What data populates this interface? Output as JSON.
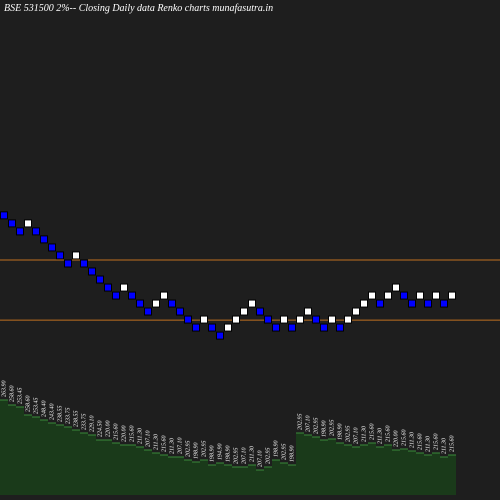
{
  "chart_data": {
    "type": "renko",
    "title": "BSE 531500  2%-- Closing Daily data Renko  charts munafasutra.in",
    "values": [
      263.9,
      258.6,
      253.45,
      258.6,
      253.45,
      248.4,
      243.4,
      238.55,
      233.75,
      238.55,
      233.75,
      229.1,
      224.5,
      220.0,
      215.6,
      220.0,
      215.6,
      211.3,
      207.1,
      211.3,
      215.6,
      211.3,
      207.1,
      202.95,
      198.9,
      202.95,
      198.9,
      194.9,
      198.9,
      202.95,
      207.1,
      211.3,
      207.1,
      202.95,
      198.9,
      202.95,
      198.9,
      202.95,
      207.1,
      202.95,
      198.9,
      202.95,
      198.9,
      202.95,
      207.1,
      211.3,
      215.6,
      211.3,
      215.6,
      220.0,
      215.6,
      211.3,
      215.6,
      211.3,
      215.6,
      211.3,
      215.6
    ],
    "value_labels": [
      "263.90",
      "258.60",
      "253.45",
      "258.60",
      "253.45",
      "248.40",
      "243.40",
      "238.55",
      "233.75",
      "238.55",
      "233.75",
      "229.10",
      "224.50",
      "220.00",
      "215.60",
      "220.00",
      "215.60",
      "211.30",
      "207.10",
      "211.30",
      "215.60",
      "211.30",
      "207.10",
      "202.95",
      "198.90",
      "202.95",
      "198.90",
      "194.90",
      "198.90",
      "202.95",
      "207.10",
      "211.30",
      "207.10",
      "202.95",
      "198.90",
      "202.95",
      "198.90",
      "202.95",
      "207.10",
      "202.95",
      "198.90",
      "202.95",
      "198.90",
      "202.95",
      "207.10",
      "211.30",
      "215.60",
      "211.30",
      "215.60",
      "220.00",
      "215.60",
      "211.30",
      "215.60",
      "211.30",
      "215.60",
      "211.30",
      "215.60"
    ],
    "volume": [
      95,
      90,
      88,
      80,
      78,
      75,
      72,
      70,
      68,
      65,
      62,
      60,
      55,
      55,
      52,
      50,
      50,
      48,
      45,
      42,
      40,
      38,
      38,
      35,
      33,
      35,
      30,
      32,
      30,
      28,
      28,
      30,
      25,
      28,
      35,
      32,
      30,
      62,
      60,
      58,
      55,
      56,
      52,
      50,
      48,
      50,
      52,
      48,
      50,
      45,
      46,
      44,
      42,
      40,
      42,
      38,
      40
    ],
    "levels": [
      236.1,
      202.9
    ],
    "ylim": [
      150,
      300
    ],
    "log": true,
    "up_color": "#ffffff",
    "down_color": "#0000ff",
    "level_color": "#c07020",
    "volume_color": "#1a3a1a",
    "volume_edge": "#3a8a3a"
  }
}
